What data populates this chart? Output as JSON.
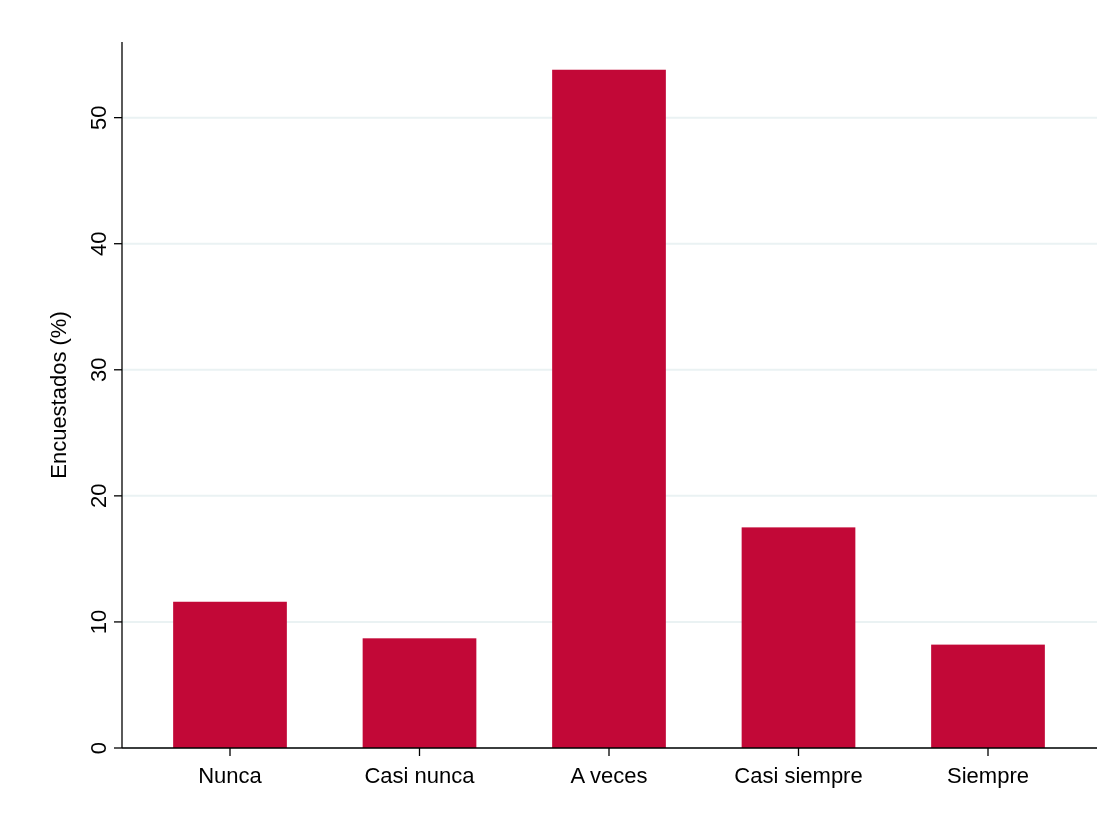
{
  "chart_data": {
    "type": "bar",
    "ylabel": "Encuestados (%)",
    "categories": [
      "Nunca",
      "Casi nunca",
      "A veces",
      "Casi siempre",
      "Siempre"
    ],
    "values": [
      11.6,
      8.7,
      53.8,
      17.5,
      8.2
    ],
    "color": "#c20837",
    "ylim": [
      0,
      56
    ],
    "yticks": [
      0,
      10,
      20,
      30,
      40,
      50
    ],
    "grid": "y"
  }
}
